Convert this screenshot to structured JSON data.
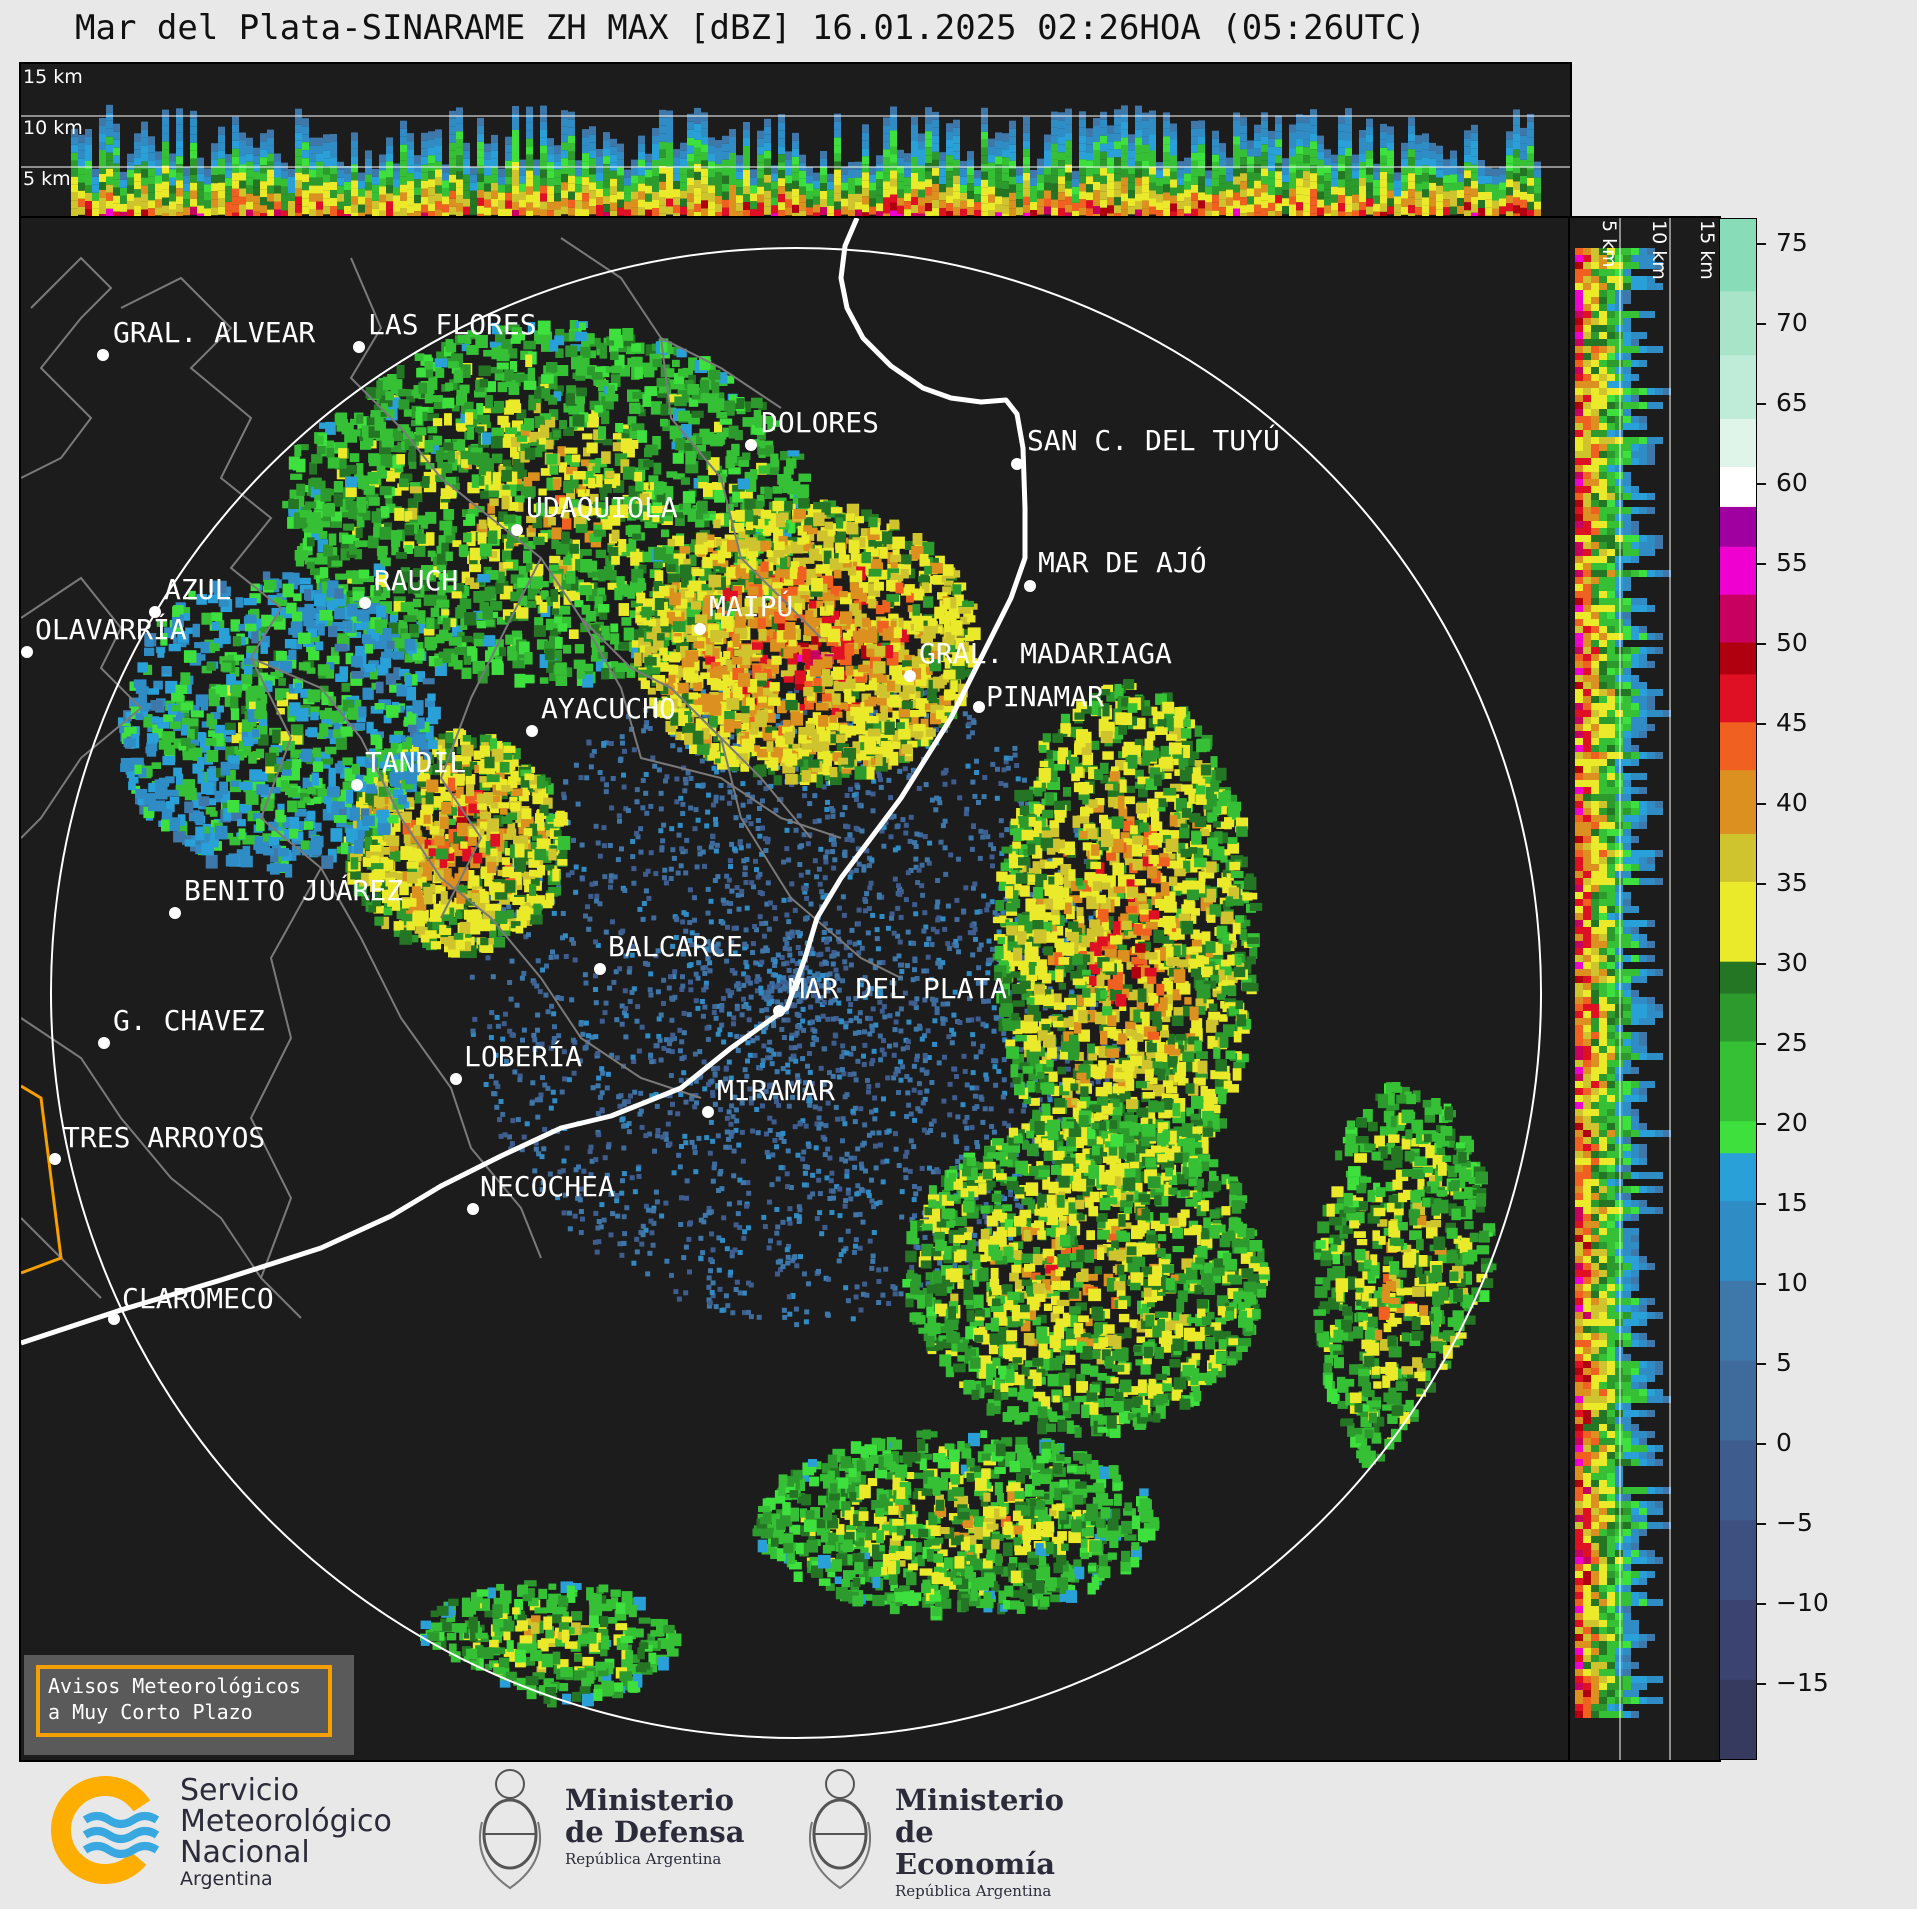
{
  "title": "Mar del Plata-SINARAME ZH MAX [dBZ] 16.01.2025 02:26HOA (05:26UTC)",
  "top_panel": {
    "height_labels": [
      "15 km",
      "10 km",
      "5 km"
    ]
  },
  "side_panel": {
    "height_labels": [
      "5 km",
      "10 km",
      "15 km"
    ]
  },
  "colorbar": {
    "unit": "dBZ",
    "ticks": [
      "75",
      "70",
      "65",
      "60",
      "55",
      "50",
      "45",
      "40",
      "35",
      "30",
      "25",
      "20",
      "15",
      "10",
      "5",
      "0",
      "−5",
      "−10",
      "−15"
    ],
    "min": -20,
    "max": 76.5,
    "bands": [
      {
        "from": -20,
        "to": -15,
        "color": "#363a5e"
      },
      {
        "from": -15,
        "to": -10,
        "color": "#3b4470"
      },
      {
        "from": -10,
        "to": -5,
        "color": "#3e5080"
      },
      {
        "from": -5,
        "to": 0,
        "color": "#3f5c8e"
      },
      {
        "from": 0,
        "to": 5,
        "color": "#3f6a9c"
      },
      {
        "from": 5,
        "to": 10,
        "color": "#3e78aa"
      },
      {
        "from": 10,
        "to": 15,
        "color": "#2f8cc4"
      },
      {
        "from": 15,
        "to": 18,
        "color": "#2aa0d8"
      },
      {
        "from": 18,
        "to": 20,
        "color": "#3de03d"
      },
      {
        "from": 20,
        "to": 25,
        "color": "#36c036"
      },
      {
        "from": 25,
        "to": 28,
        "color": "#2d9a2d"
      },
      {
        "from": 28,
        "to": 30,
        "color": "#247624"
      },
      {
        "from": 30,
        "to": 35,
        "color": "#eaea2a"
      },
      {
        "from": 35,
        "to": 38,
        "color": "#cfc42e"
      },
      {
        "from": 38,
        "to": 42,
        "color": "#dc9020"
      },
      {
        "from": 42,
        "to": 45,
        "color": "#f06020"
      },
      {
        "from": 45,
        "to": 48,
        "color": "#e01024"
      },
      {
        "from": 48,
        "to": 50,
        "color": "#b00010"
      },
      {
        "from": 50,
        "to": 53,
        "color": "#c80060"
      },
      {
        "from": 53,
        "to": 56,
        "color": "#f000d0"
      },
      {
        "from": 56,
        "to": 58.5,
        "color": "#a000a0"
      },
      {
        "from": 58.5,
        "to": 61,
        "color": "#ffffff"
      },
      {
        "from": 61,
        "to": 64,
        "color": "#dff5ea"
      },
      {
        "from": 64,
        "to": 68,
        "color": "#bfecd8"
      },
      {
        "from": 68,
        "to": 72,
        "color": "#a8e4c8"
      },
      {
        "from": 72,
        "to": 76.5,
        "color": "#88dcb8"
      }
    ]
  },
  "cities": [
    {
      "name": "GRAL. ALVEAR"
    },
    {
      "name": "LAS FLORES"
    },
    {
      "name": "DOLORES"
    },
    {
      "name": "SAN C. DEL TUYÚ"
    },
    {
      "name": "UDAQUIOLA"
    },
    {
      "name": "MAR DE AJÓ"
    },
    {
      "name": "AZUL"
    },
    {
      "name": "RAUCH"
    },
    {
      "name": "MAIPÚ"
    },
    {
      "name": "OLAVARRÍA"
    },
    {
      "name": "GRAL. MADARIAGA"
    },
    {
      "name": "PINAMAR"
    },
    {
      "name": "AYACUCHO"
    },
    {
      "name": "TANDIL"
    },
    {
      "name": "BENITO JUÁREZ"
    },
    {
      "name": "BALCARCE"
    },
    {
      "name": "MAR DEL PLATA"
    },
    {
      "name": "G. CHAVEZ"
    },
    {
      "name": "LOBERÍA"
    },
    {
      "name": "MIRAMAR"
    },
    {
      "name": "TRES ARROYOS"
    },
    {
      "name": "NECOCHEA"
    },
    {
      "name": "CLAROMECO"
    }
  ],
  "avisos": {
    "line1": "Avisos Meteorológicos",
    "line2": "a Muy Corto Plazo"
  },
  "logos": {
    "smn": {
      "line1": "Servicio",
      "line2": "Meteorológico",
      "line3": "Nacional",
      "line4": "Argentina"
    },
    "defensa": {
      "line1": "Ministerio",
      "line2": "de Defensa",
      "line3": "República Argentina"
    },
    "economia": {
      "line1": "Ministerio",
      "line2": "de Economía",
      "line3": "República Argentina"
    }
  },
  "colors": {
    "background": "#e8e8e8",
    "panel": "#1c1c1c",
    "range_ring": "#ffffff",
    "coast": "#ffffff",
    "borders": "#7a7a7a",
    "orange_border": "#f5a000",
    "smn_orange": "#fdae00",
    "smn_blue": "#3aa8e0"
  }
}
